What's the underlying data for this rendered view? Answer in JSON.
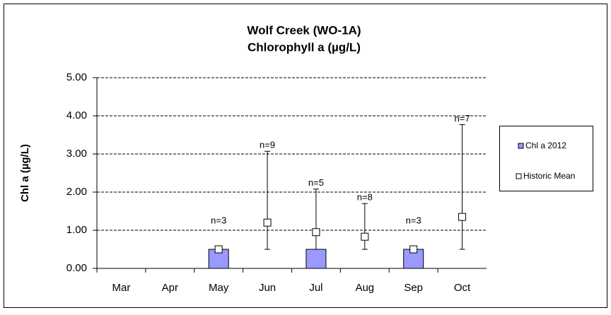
{
  "chart_data": {
    "type": "bar_with_mean",
    "title": "Wolf Creek (WO-1A)",
    "subtitle": "Chlorophyll a (µg/L)",
    "y_label": "Chl a (µg/L)",
    "categories": [
      "Mar",
      "Apr",
      "May",
      "Jun",
      "Jul",
      "Aug",
      "Sep",
      "Oct"
    ],
    "series": [
      {
        "name": "Chl a 2012",
        "color": "#9999ff",
        "values": [
          null,
          null,
          0.5,
          null,
          0.5,
          null,
          0.5,
          null
        ]
      },
      {
        "name": "Historic Mean",
        "color": "#ffffff",
        "values": [
          null,
          null,
          0.5,
          1.2,
          0.95,
          0.83,
          0.5,
          1.35
        ],
        "error_low": [
          null,
          null,
          null,
          0.5,
          0.5,
          0.5,
          null,
          0.5
        ],
        "error_high": [
          null,
          null,
          null,
          3.07,
          2.08,
          1.7,
          null,
          3.77
        ]
      }
    ],
    "annotations": [
      null,
      null,
      "n=3",
      "n=9",
      "n=5",
      "n=8",
      "n=3",
      "n=7"
    ],
    "ylim": [
      0,
      5
    ],
    "yticks": [
      {
        "value": 0,
        "label": "0.00"
      },
      {
        "value": 1,
        "label": "1.00"
      },
      {
        "value": 2,
        "label": "2.00"
      },
      {
        "value": 3,
        "label": "3.00"
      },
      {
        "value": 4,
        "label": "4.00"
      },
      {
        "value": 5,
        "label": "5.00"
      }
    ],
    "grid": true,
    "legend_position": "right"
  }
}
